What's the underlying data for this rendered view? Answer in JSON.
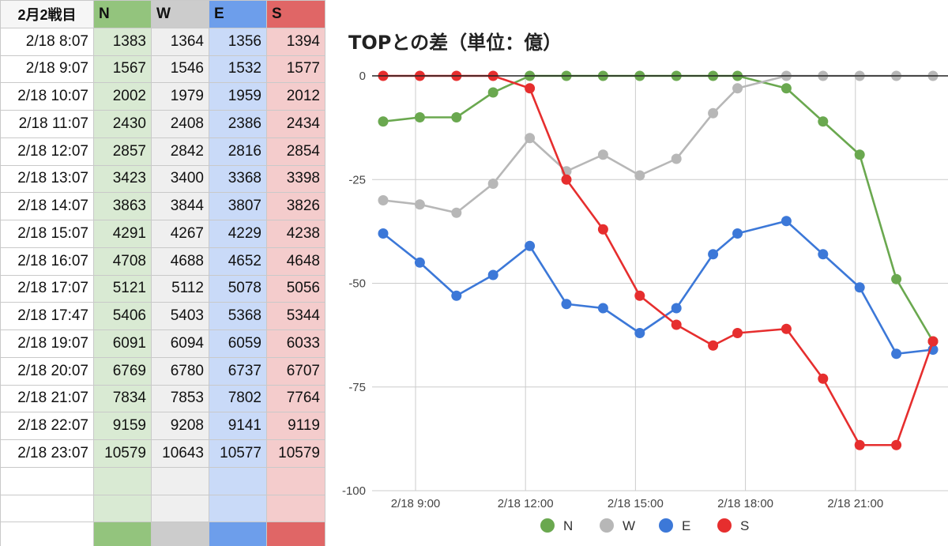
{
  "sheet": {
    "corner": "2月2戦目",
    "headers": [
      "N",
      "W",
      "E",
      "S"
    ],
    "rows": [
      {
        "time": "2/18 8:07",
        "vals": [
          "1383",
          "1364",
          "1356",
          "1394"
        ]
      },
      {
        "time": "2/18 9:07",
        "vals": [
          "1567",
          "1546",
          "1532",
          "1577"
        ]
      },
      {
        "time": "2/18 10:07",
        "vals": [
          "2002",
          "1979",
          "1959",
          "2012"
        ]
      },
      {
        "time": "2/18 11:07",
        "vals": [
          "2430",
          "2408",
          "2386",
          "2434"
        ]
      },
      {
        "time": "2/18 12:07",
        "vals": [
          "2857",
          "2842",
          "2816",
          "2854"
        ]
      },
      {
        "time": "2/18 13:07",
        "vals": [
          "3423",
          "3400",
          "3368",
          "3398"
        ]
      },
      {
        "time": "2/18 14:07",
        "vals": [
          "3863",
          "3844",
          "3807",
          "3826"
        ]
      },
      {
        "time": "2/18 15:07",
        "vals": [
          "4291",
          "4267",
          "4229",
          "4238"
        ]
      },
      {
        "time": "2/18 16:07",
        "vals": [
          "4708",
          "4688",
          "4652",
          "4648"
        ]
      },
      {
        "time": "2/18 17:07",
        "vals": [
          "5121",
          "5112",
          "5078",
          "5056"
        ]
      },
      {
        "time": "2/18 17:47",
        "vals": [
          "5406",
          "5403",
          "5368",
          "5344"
        ]
      },
      {
        "time": "2/18 19:07",
        "vals": [
          "6091",
          "6094",
          "6059",
          "6033"
        ]
      },
      {
        "time": "2/18 20:07",
        "vals": [
          "6769",
          "6780",
          "6737",
          "6707"
        ]
      },
      {
        "time": "2/18 21:07",
        "vals": [
          "7834",
          "7853",
          "7802",
          "7764"
        ]
      },
      {
        "time": "2/18 22:07",
        "vals": [
          "9159",
          "9208",
          "9141",
          "9119"
        ]
      },
      {
        "time": "2/18 23:07",
        "vals": [
          "10579",
          "10643",
          "10577",
          "10579"
        ]
      }
    ],
    "colors": {
      "N_header": "#93c47d",
      "N_cell": "#d9ead3",
      "W_header": "#cccccc",
      "W_cell": "#efefef",
      "E_header": "#6d9eeb",
      "E_cell": "#c9daf8",
      "S_header": "#e06666",
      "S_cell": "#f4cccc"
    }
  },
  "chart_data": {
    "type": "line",
    "title": "TOPとの差（単位：億）",
    "xlabel": "",
    "ylabel": "",
    "ylim": [
      -100,
      0
    ],
    "yticks": [
      0,
      -25,
      -50,
      -75,
      -100
    ],
    "xtick_labels": [
      "2/18 9:00",
      "2/18 12:00",
      "2/18 15:00",
      "2/18 18:00",
      "2/18 21:00"
    ],
    "x": [
      "2/18 8:07",
      "2/18 9:07",
      "2/18 10:07",
      "2/18 11:07",
      "2/18 12:07",
      "2/18 13:07",
      "2/18 14:07",
      "2/18 15:07",
      "2/18 16:07",
      "2/18 17:07",
      "2/18 17:47",
      "2/18 19:07",
      "2/18 20:07",
      "2/18 21:07",
      "2/18 22:07",
      "2/18 23:07"
    ],
    "series": [
      {
        "name": "N",
        "color": "#6aa84f",
        "values": [
          -11,
          -10,
          -10,
          -4,
          0,
          0,
          0,
          0,
          0,
          0,
          0,
          -3,
          -11,
          -19,
          -49,
          -64
        ]
      },
      {
        "name": "W",
        "color": "#b7b7b7",
        "values": [
          -30,
          -31,
          -33,
          -26,
          -15,
          -23,
          -19,
          -24,
          -20,
          -9,
          -3,
          0,
          0,
          0,
          0,
          0
        ]
      },
      {
        "name": "E",
        "color": "#3c78d8",
        "values": [
          -38,
          -45,
          -53,
          -48,
          -41,
          -55,
          -56,
          -62,
          -56,
          -43,
          -38,
          -35,
          -43,
          -51,
          -67,
          -66
        ]
      },
      {
        "name": "S",
        "color": "#e62e2e",
        "values": [
          0,
          0,
          0,
          0,
          -3,
          -25,
          -37,
          -53,
          -60,
          -65,
          -62,
          -61,
          -73,
          -89,
          -89,
          -64
        ]
      }
    ],
    "grid": true,
    "legend": "bottom"
  }
}
